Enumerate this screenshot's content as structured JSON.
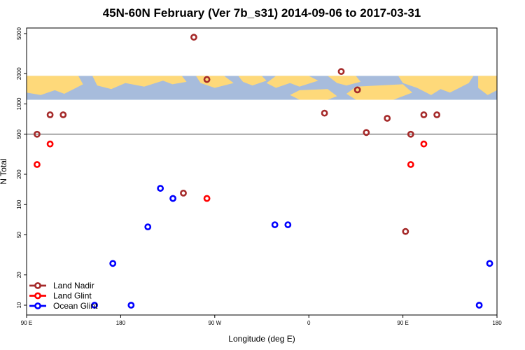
{
  "chart_data": {
    "type": "scatter",
    "title": "45N-60N February (Ver 7b_s31)   2014-09-06 to 2017-03-31",
    "xlabel": "Longitude (deg E)",
    "ylabel": "N Total",
    "x_axis_note": "longitude runs eastward from 90 E through 180 and back to 180",
    "xlim": [
      0,
      450
    ],
    "ylim": [
      8,
      6000
    ],
    "y_scale": "log",
    "x_ticks": [
      {
        "value": 0,
        "label": "90 E"
      },
      {
        "value": 90,
        "label": "180"
      },
      {
        "value": 180,
        "label": "90 W"
      },
      {
        "value": 270,
        "label": "0"
      },
      {
        "value": 360,
        "label": "90 E"
      },
      {
        "value": 450,
        "label": "180"
      }
    ],
    "y_ticks": [
      {
        "value": 10,
        "label": "10"
      },
      {
        "value": 20,
        "label": "20"
      },
      {
        "value": 50,
        "label": "50"
      },
      {
        "value": 100,
        "label": "100"
      },
      {
        "value": 200,
        "label": "200"
      },
      {
        "value": 500,
        "label": "500"
      },
      {
        "value": 1000,
        "label": "1000"
      },
      {
        "value": 2000,
        "label": "2000"
      },
      {
        "value": 5000,
        "label": "5000"
      }
    ],
    "reference_line_y": 500,
    "map_strip": {
      "y_from": 1100,
      "y_to": 1900
    },
    "grid": false,
    "legend_position": "bottom-left",
    "series": [
      {
        "name": "Land Nadir",
        "color": "#a52a2a",
        "x": [
          10,
          22.5,
          35,
          150,
          160,
          172.5,
          285,
          301,
          316.5,
          325,
          345,
          362.5,
          367.5,
          380,
          392.5
        ],
        "y": [
          500,
          780,
          780,
          130,
          4600,
          1750,
          810,
          2100,
          1380,
          520,
          720,
          54,
          500,
          780,
          780
        ]
      },
      {
        "name": "Land Glint",
        "color": "#ff0000",
        "x": [
          10,
          22.5,
          172.5,
          367.5,
          380
        ],
        "y": [
          250,
          400,
          115,
          250,
          400
        ]
      },
      {
        "name": "Ocean Glint",
        "color": "#0000ff",
        "x": [
          65,
          82.5,
          100,
          116,
          128,
          140,
          237.5,
          250,
          433,
          443
        ],
        "y": [
          10,
          26,
          10,
          60,
          145,
          115,
          63,
          63,
          10,
          26
        ]
      }
    ]
  }
}
